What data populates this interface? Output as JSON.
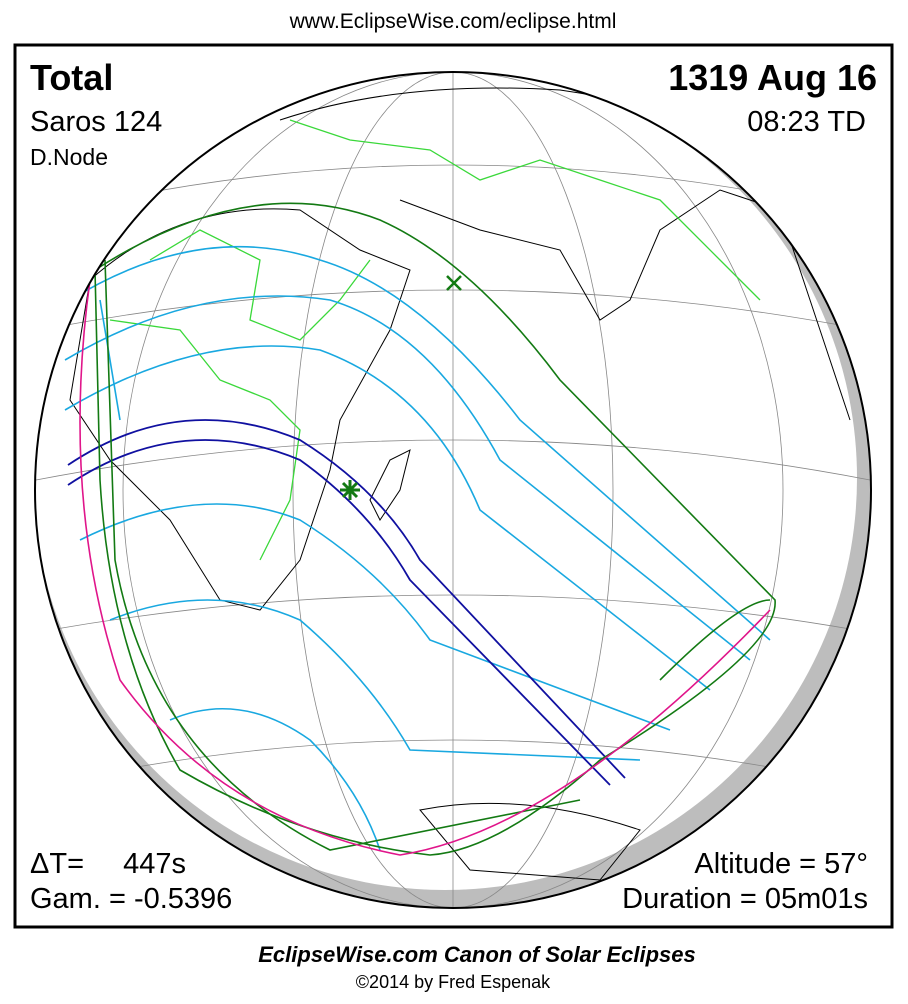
{
  "header": {
    "url": "www.EclipseWise.com/eclipse.html"
  },
  "panel": {
    "eclipse_type": "Total",
    "date": "1319 Aug 16",
    "saros": "Saros 124",
    "time": "08:23 TD",
    "node": "D.Node",
    "delta_t_label": "ΔT=",
    "delta_t": "447s",
    "gamma": "Gam. = -0.5396",
    "altitude": "Altitude = 57°",
    "duration": "Duration = 05m01s"
  },
  "footer": {
    "title": "EclipseWise.com Canon of Solar Eclipses",
    "credit": "©2014 by Fred Espenak"
  }
}
